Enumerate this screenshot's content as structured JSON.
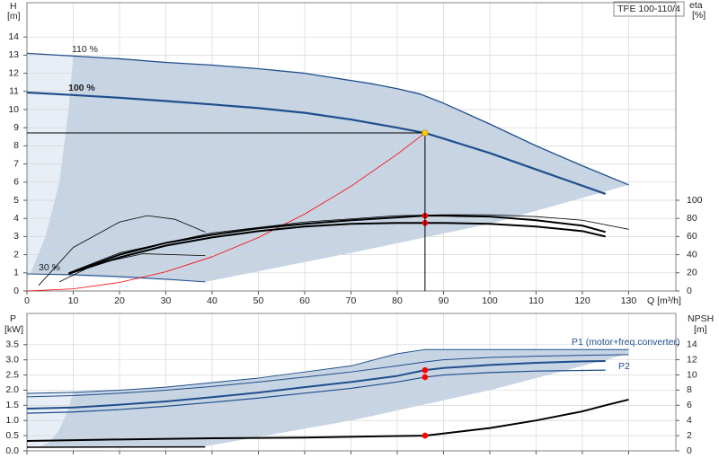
{
  "chart_data": [
    {
      "type": "line",
      "model": "TPE 100-110/4",
      "ylabel": "H",
      "yunit": "[m]",
      "y2label": "eta",
      "y2unit": "[%]",
      "xlabel": "Q [m³/h]",
      "xlim": [
        0,
        140.2
      ],
      "xticks": [
        0,
        10,
        20,
        30,
        40,
        50,
        60,
        70,
        80,
        90,
        100,
        110,
        120,
        130
      ],
      "ylim": [
        0,
        15.89
      ],
      "yticks": [
        0,
        1,
        2,
        3,
        4,
        5,
        6,
        7,
        8,
        9,
        10,
        11,
        12,
        13,
        14
      ],
      "y2lim": [
        0,
        317.8
      ],
      "y2ticks": [
        0,
        20,
        40,
        60,
        80,
        100
      ],
      "grid": true,
      "areas": [
        {
          "color": "#c6d4e4",
          "x": [
            0,
            10,
            20,
            30,
            40,
            50,
            60,
            70,
            75,
            80,
            85,
            90,
            100,
            110,
            120,
            130,
            100,
            70,
            38.5,
            0
          ],
          "values": [
            13.1,
            12.95,
            12.8,
            12.6,
            12.45,
            12.25,
            12.0,
            11.6,
            11.4,
            11.15,
            10.85,
            10.35,
            9.2,
            8.0,
            6.9,
            5.85,
            3.7,
            2.1,
            0.5,
            0.94
          ]
        },
        {
          "color": "#e8eef5",
          "x": [
            0,
            10,
            9,
            7,
            4,
            0
          ],
          "values": [
            13.1,
            12.95,
            10.0,
            6.0,
            3.0,
            0.5
          ]
        }
      ],
      "series": [
        {
          "name": "110 %",
          "color": "#1f4e8c",
          "width": 1.3,
          "x": [
            0,
            10,
            20,
            30,
            40,
            50,
            60,
            70,
            75,
            80,
            85,
            90,
            100,
            110,
            120,
            130
          ],
          "values": [
            13.1,
            12.95,
            12.8,
            12.6,
            12.45,
            12.25,
            12.0,
            11.6,
            11.4,
            11.15,
            10.85,
            10.35,
            9.2,
            8.0,
            6.9,
            5.85
          ]
        },
        {
          "name": "100 %",
          "color": "#1f4e8c",
          "width": 2.2,
          "x": [
            0,
            10,
            20,
            30,
            40,
            50,
            60,
            70,
            80,
            86,
            90,
            100,
            110,
            120,
            125
          ],
          "values": [
            10.94,
            10.8,
            10.65,
            10.47,
            10.28,
            10.08,
            9.82,
            9.45,
            9.0,
            8.71,
            8.4,
            7.6,
            6.7,
            5.8,
            5.35
          ]
        },
        {
          "name": "30 %",
          "color": "#1f4e8c",
          "width": 1,
          "x": [
            0,
            10,
            20,
            30,
            38.5
          ],
          "values": [
            0.94,
            0.9,
            0.8,
            0.65,
            0.5
          ]
        },
        {
          "color": "#ff0000",
          "width": 0.8,
          "x": [
            0,
            10,
            20,
            30,
            40,
            50,
            60,
            70,
            80,
            86
          ],
          "values": [
            0,
            0.118,
            0.471,
            1.06,
            1.884,
            2.944,
            4.24,
            5.77,
            7.54,
            8.71
          ]
        },
        {
          "color": "#000000",
          "width": 2,
          "axis": "y2",
          "x": [
            9,
            20,
            30,
            40,
            50,
            60,
            70,
            80,
            86,
            90,
            100,
            110,
            120,
            125
          ],
          "values": [
            19,
            40,
            53,
            62,
            69,
            74,
            78,
            81,
            83,
            83,
            82,
            78,
            72,
            65
          ]
        },
        {
          "color": "#000000",
          "width": 2,
          "axis": "y2",
          "x": [
            9,
            20,
            30,
            40,
            50,
            60,
            70,
            80,
            86,
            90,
            100,
            110,
            120,
            125
          ],
          "values": [
            19,
            37,
            50,
            59,
            66,
            71,
            74,
            75,
            75,
            75,
            74,
            71,
            66,
            60
          ]
        },
        {
          "color": "#000000",
          "width": 0.8,
          "axis": "y2",
          "x": [
            9,
            20,
            40,
            60,
            80,
            90,
            100,
            110,
            120,
            130
          ],
          "values": [
            20,
            42,
            64,
            76,
            83,
            84,
            84,
            82,
            78,
            68
          ]
        },
        {
          "color": "#000000",
          "width": 0.8,
          "axis": "y2",
          "x": [
            2.5,
            10,
            20,
            26,
            32,
            38.5
          ],
          "values": [
            6,
            48,
            76,
            83,
            79,
            65
          ]
        },
        {
          "color": "#000000",
          "width": 0.8,
          "axis": "y2",
          "x": [
            7,
            15,
            25,
            38.5
          ],
          "values": [
            10,
            30,
            41,
            39
          ]
        }
      ],
      "points": [
        {
          "color": "#ff0000",
          "axis": "y2",
          "x": [
            86,
            86
          ],
          "values": [
            83,
            75
          ]
        },
        {
          "color": "#ffcc00",
          "crosshair": true,
          "x": [
            86
          ],
          "values": [
            8.71
          ]
        }
      ]
    },
    {
      "type": "line",
      "ylabel": "P",
      "yunit": "[kW]",
      "y2label": "NPSH",
      "y2unit": "[m]",
      "xlim": [
        0,
        140.2
      ],
      "ylim": [
        0,
        4.53
      ],
      "yticks": [
        {
          "value": 0,
          "label": "0.0"
        },
        0.5,
        {
          "value": 1,
          "label": "1.0"
        },
        1.5,
        {
          "value": 2,
          "label": "2.0"
        },
        2.5,
        {
          "value": 3,
          "label": "3.0"
        },
        3.5
      ],
      "y2lim": [
        0,
        18.1
      ],
      "y2ticks": [
        0,
        2,
        4,
        6,
        8,
        10,
        12,
        14
      ],
      "grid": true,
      "areas": [
        {
          "color": "#c6d4e4",
          "x": [
            0,
            10,
            20,
            30,
            40,
            50,
            60,
            70,
            80,
            86,
            130,
            130,
            100,
            70,
            38.5,
            0
          ],
          "values": [
            1.89,
            1.93,
            2.0,
            2.1,
            2.25,
            2.4,
            2.6,
            2.8,
            3.2,
            3.34,
            3.34,
            3.2,
            2.0,
            1.0,
            0.15,
            0.15
          ]
        },
        {
          "color": "#e8eef5",
          "x": [
            0,
            10,
            9,
            7,
            5,
            3,
            0
          ],
          "values": [
            1.95,
            1.95,
            1.4,
            0.7,
            0.3,
            0.15,
            0.15
          ]
        }
      ],
      "series": [
        {
          "color": "#1f4e8c",
          "width": 1,
          "x": [
            0,
            10,
            20,
            30,
            40,
            50,
            60,
            70,
            80,
            86,
            90,
            100,
            110,
            120,
            130
          ],
          "values": [
            1.89,
            1.93,
            2.0,
            2.1,
            2.25,
            2.4,
            2.6,
            2.8,
            3.2,
            3.34,
            3.34,
            3.34,
            3.34,
            3.34,
            3.34
          ]
        },
        {
          "color": "#1f4e8c",
          "width": 1,
          "x": [
            0,
            10,
            20,
            30,
            40,
            50,
            60,
            70,
            80,
            86,
            90,
            100,
            110,
            120,
            130
          ],
          "values": [
            1.78,
            1.82,
            1.9,
            2.0,
            2.12,
            2.27,
            2.43,
            2.6,
            2.8,
            2.93,
            3.0,
            3.08,
            3.12,
            3.15,
            3.17
          ]
        },
        {
          "name": "P1 (motor+freq.converter)",
          "color": "#1f4e8c",
          "width": 2,
          "x": [
            0,
            10,
            20,
            30,
            40,
            50,
            60,
            70,
            80,
            86,
            90,
            100,
            110,
            120,
            125
          ],
          "values": [
            1.39,
            1.43,
            1.52,
            1.63,
            1.77,
            1.92,
            2.1,
            2.27,
            2.47,
            2.66,
            2.73,
            2.83,
            2.9,
            2.95,
            2.96
          ]
        },
        {
          "name": "P2",
          "color": "#1f4e8c",
          "width": 1.2,
          "x": [
            0,
            10,
            20,
            30,
            40,
            50,
            60,
            70,
            80,
            86,
            90,
            100,
            110,
            120,
            125
          ],
          "values": [
            1.24,
            1.28,
            1.36,
            1.47,
            1.6,
            1.74,
            1.9,
            2.06,
            2.27,
            2.43,
            2.5,
            2.58,
            2.63,
            2.65,
            2.66
          ]
        },
        {
          "color": "#000000",
          "width": 2,
          "axis": "y2",
          "x": [
            0,
            20,
            40,
            60,
            80,
            86,
            100,
            110,
            120,
            125,
            130
          ],
          "values": [
            1.3,
            1.5,
            1.65,
            1.75,
            1.95,
            2.0,
            3.0,
            4.0,
            5.2,
            6.0,
            6.75
          ]
        },
        {
          "color": "#000000",
          "width": 1.5,
          "x": [
            0,
            38.5
          ],
          "values": [
            0.12,
            0.13
          ]
        }
      ],
      "points": [
        {
          "color": "#ff0000",
          "x": [
            86,
            86
          ],
          "values": [
            2.66,
            2.43
          ]
        },
        {
          "color": "#ff0000",
          "axis": "y2",
          "x": [
            86
          ],
          "values": [
            2.0
          ]
        }
      ]
    }
  ]
}
